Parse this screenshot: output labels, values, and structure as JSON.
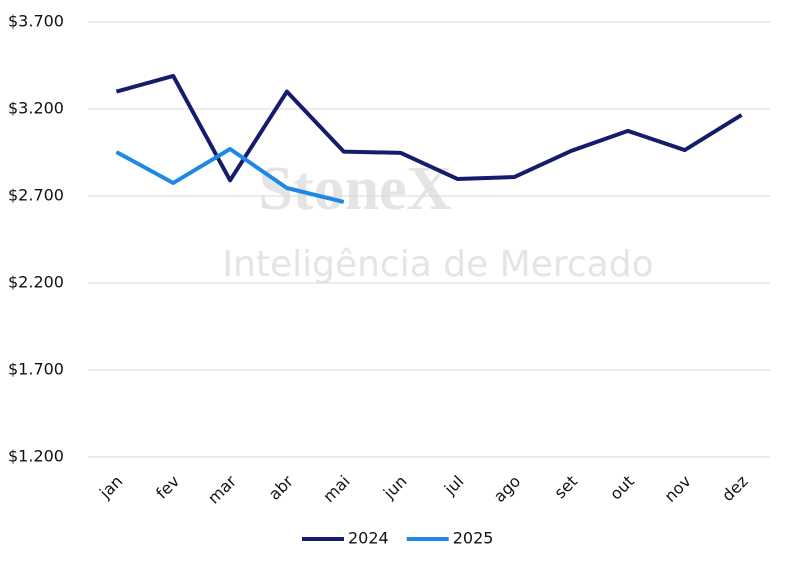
{
  "chart_data": {
    "type": "line",
    "watermark": [
      "StoneX",
      "Inteligência de Mercado"
    ],
    "categories": [
      "jan",
      "fev",
      "mar",
      "abr",
      "mai",
      "jun",
      "jul",
      "ago",
      "set",
      "out",
      "nov",
      "dez"
    ],
    "series": [
      {
        "name": "2024",
        "color": "#141c6b",
        "values": [
          3300,
          3390,
          2790,
          3300,
          2955,
          2948,
          2798,
          2809,
          2959,
          3074,
          2964,
          3166
        ]
      },
      {
        "name": "2025",
        "color": "#1e88e5",
        "values": [
          2953,
          2775,
          2970,
          2746,
          2666,
          null,
          null,
          null,
          null,
          null,
          null,
          null
        ]
      }
    ],
    "ylim": [
      1200,
      3700
    ],
    "yticks": [
      {
        "value": 1200,
        "label": "$1.200"
      },
      {
        "value": 1700,
        "label": "$1.700"
      },
      {
        "value": 2200,
        "label": "$2.200"
      },
      {
        "value": 2700,
        "label": "$2.700"
      },
      {
        "value": 3200,
        "label": "$3.200"
      },
      {
        "value": 3700,
        "label": "$3.700"
      }
    ],
    "grid": true,
    "legend": "bottom"
  }
}
